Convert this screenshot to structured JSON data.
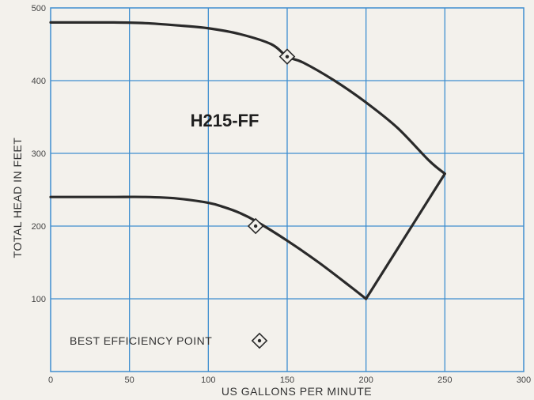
{
  "chart_data": {
    "type": "line",
    "title": "H215-FF",
    "xlabel": "US GALLONS PER MINUTE",
    "ylabel": "TOTAL HEAD IN FEET",
    "xlim": [
      0,
      300
    ],
    "ylim": [
      0,
      500
    ],
    "xticks": [
      0,
      50,
      100,
      150,
      200,
      250,
      300
    ],
    "yticks": [
      100,
      200,
      300,
      400,
      500
    ],
    "xtick_labels": [
      "0",
      "50",
      "100",
      "150",
      "200",
      "250",
      "300"
    ],
    "ytick_labels": [
      "100",
      "200",
      "300",
      "400",
      "500"
    ],
    "grid": true,
    "colors": {
      "grid": "#3e8ed0",
      "curve": "#2a2a2a",
      "background": "#f3f1ec"
    },
    "series": [
      {
        "x": [
          0,
          20,
          40,
          60,
          80,
          100,
          120,
          140,
          150,
          160,
          180,
          200,
          220,
          240,
          250
        ],
        "values": [
          480,
          480,
          480,
          479,
          476,
          472,
          464,
          450,
          433,
          425,
          400,
          370,
          335,
          290,
          272
        ]
      },
      {
        "x": [
          0,
          20,
          40,
          60,
          80,
          100,
          110,
          120,
          130,
          150,
          170,
          190,
          200
        ],
        "values": [
          240,
          240,
          240,
          240,
          238,
          232,
          226,
          218,
          207,
          180,
          150,
          117,
          100
        ]
      },
      {
        "x": [
          200,
          250
        ],
        "values": [
          100,
          272
        ]
      }
    ],
    "markers": [
      {
        "x": 150,
        "y": 433
      },
      {
        "x": 130,
        "y": 200
      }
    ],
    "legend": {
      "label": "BEST EFFICIENCY POINT",
      "placement": "bottom-left",
      "icon": "diamond-dot-icon"
    }
  }
}
